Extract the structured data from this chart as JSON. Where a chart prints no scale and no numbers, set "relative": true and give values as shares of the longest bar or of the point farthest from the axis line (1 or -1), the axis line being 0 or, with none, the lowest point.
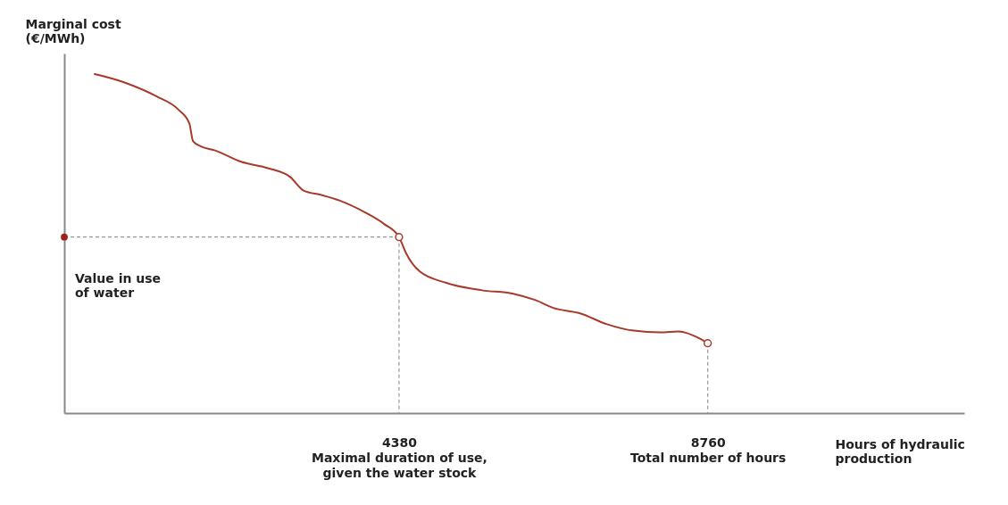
{
  "chart_data": {
    "type": "line",
    "relative": true,
    "ylabel": "Marginal cost (€/MWh)",
    "xlabel": "Hours of hydraulic production",
    "xlim": [
      -370,
      12400
    ],
    "xticks": [
      {
        "value": 4380,
        "label": "4380 Maximal duration of use, given the water stock"
      },
      {
        "value": 8760,
        "label": "8760 Total number of hours"
      }
    ],
    "grid": false,
    "marker": "none",
    "line_style": "solid",
    "series": [
      {
        "color": "#a83a2a",
        "x": [
          51,
          494,
          937,
          1253,
          1405,
          1456,
          1570,
          1760,
          2139,
          2519,
          2836,
          3026,
          3279,
          3532,
          3912,
          4165,
          4380,
          4481,
          4671,
          5051,
          5557,
          6000,
          6317,
          6570,
          6950,
          7330,
          7709,
          8089,
          8342,
          8595,
          8760
        ],
        "values": [
          1.0,
          0.974,
          0.934,
          0.894,
          0.854,
          0.802,
          0.786,
          0.775,
          0.741,
          0.722,
          0.696,
          0.656,
          0.643,
          0.627,
          0.59,
          0.558,
          0.519,
          0.471,
          0.418,
          0.384,
          0.362,
          0.352,
          0.333,
          0.31,
          0.294,
          0.262,
          0.243,
          0.238,
          0.241,
          0.225,
          0.206
        ]
      },
      {
        "type": "line",
        "line_style": "dashed",
        "color": "#999999",
        "x": [
          -370,
          4380
        ],
        "values": [
          0.519,
          0.519
        ]
      },
      {
        "type": "line",
        "line_style": "dashed",
        "color": "#999999",
        "x": [
          4380,
          4380
        ],
        "values": [
          0.519,
          0
        ]
      },
      {
        "type": "line",
        "line_style": "dashed",
        "color": "#999999",
        "x": [
          8760,
          8760
        ],
        "values": [
          0.206,
          0
        ]
      },
      {
        "type": "scatter",
        "marker": "circle",
        "color": "#a83a2a",
        "x": [
          4380,
          8760
        ],
        "values": [
          0.519,
          0.206
        ]
      },
      {
        "type": "scatter",
        "marker": "circle",
        "color": "#a0201a",
        "x": [
          -370
        ],
        "values": [
          0.519
        ]
      }
    ],
    "annotations": [
      {
        "text": "Value in use of water",
        "x": -370,
        "y": 0.519
      }
    ]
  }
}
